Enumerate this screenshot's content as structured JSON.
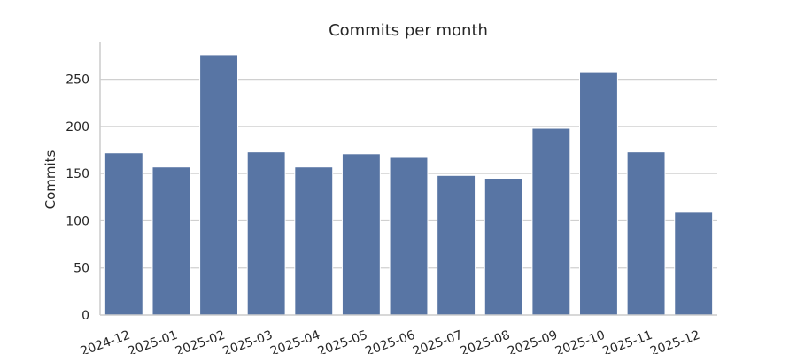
{
  "chart_data": {
    "type": "bar",
    "title": "Commits per month",
    "xlabel": "",
    "ylabel": "Commits",
    "categories": [
      "2024-12",
      "2025-01",
      "2025-02",
      "2025-03",
      "2025-04",
      "2025-05",
      "2025-06",
      "2025-07",
      "2025-08",
      "2025-09",
      "2025-10",
      "2025-11",
      "2025-12"
    ],
    "values": [
      172,
      157,
      276,
      173,
      157,
      171,
      168,
      148,
      145,
      198,
      258,
      173,
      109
    ],
    "ylim": [
      0,
      290
    ],
    "yticks": [
      0,
      50,
      100,
      150,
      200,
      250
    ],
    "grid": "horizontal",
    "bar_color": "#5875a4"
  }
}
